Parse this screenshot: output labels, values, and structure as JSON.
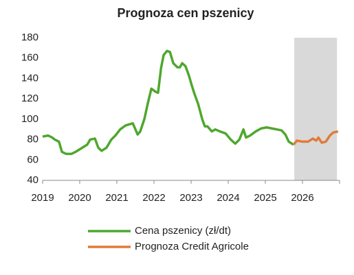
{
  "chart_data": {
    "type": "line",
    "title": "Prognoza cen pszenicy",
    "xlim": [
      2019,
      2027
    ],
    "xticks": [
      2019,
      2020,
      2021,
      2022,
      2023,
      2024,
      2025,
      2026
    ],
    "ylim": [
      40,
      180
    ],
    "yticks": [
      40,
      60,
      80,
      100,
      120,
      140,
      160,
      180
    ],
    "shaded_xrange": [
      2025.78,
      2026.93
    ],
    "shade_color": "#d9d9d9",
    "grid": false,
    "legend": "bottom",
    "series": [
      {
        "name": "Cena pszenicy (zł/dt)",
        "color": "#4ea72e",
        "x": [
          2019.0,
          2019.15,
          2019.26,
          2019.33,
          2019.44,
          2019.52,
          2019.63,
          2019.78,
          2019.89,
          2019.98,
          2020.11,
          2020.2,
          2020.28,
          2020.41,
          2020.5,
          2020.59,
          2020.72,
          2020.85,
          2020.96,
          2021.09,
          2021.24,
          2021.43,
          2021.56,
          2021.63,
          2021.74,
          2021.83,
          2021.93,
          2022.04,
          2022.11,
          2022.19,
          2022.26,
          2022.35,
          2022.43,
          2022.52,
          2022.63,
          2022.7,
          2022.76,
          2022.85,
          2022.94,
          2023.02,
          2023.09,
          2023.19,
          2023.3,
          2023.37,
          2023.44,
          2023.56,
          2023.65,
          2023.78,
          2023.93,
          2024.07,
          2024.19,
          2024.3,
          2024.41,
          2024.48,
          2024.59,
          2024.74,
          2024.89,
          2025.04,
          2025.17,
          2025.31,
          2025.44,
          2025.54,
          2025.63,
          2025.76
        ],
        "values": [
          83,
          84,
          82,
          80,
          78,
          68,
          66,
          66,
          68,
          70,
          73,
          75,
          80,
          81,
          72,
          69,
          72,
          80,
          84,
          90,
          94,
          96,
          85,
          88,
          100,
          115,
          130,
          127,
          126,
          150,
          163,
          167,
          166,
          155,
          151,
          151,
          155,
          152,
          143,
          133,
          125,
          115,
          100,
          93,
          93,
          88,
          90,
          88,
          86,
          80,
          76,
          80,
          90,
          82,
          84,
          88,
          91,
          92,
          91,
          90,
          89,
          85,
          78,
          75
        ]
      },
      {
        "name": "Prognoza Credit Agricole",
        "color": "#e07b39",
        "x": [
          2025.76,
          2025.85,
          2026.0,
          2026.15,
          2026.28,
          2026.37,
          2026.43,
          2026.52,
          2026.63,
          2026.74,
          2026.83,
          2026.96
        ],
        "values": [
          75,
          79,
          78,
          78,
          81,
          79,
          82,
          77,
          78,
          84,
          87,
          88
        ]
      }
    ]
  }
}
